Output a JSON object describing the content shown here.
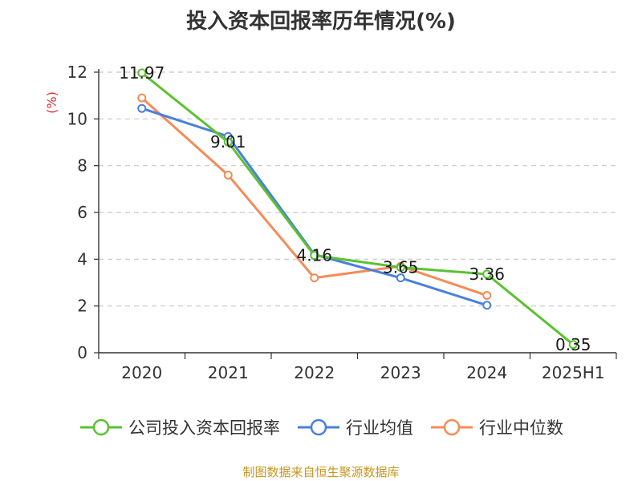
{
  "chart_data": {
    "type": "line",
    "title": "投入资本回报率历年情况(%)",
    "ylabel": "(%)",
    "categories": [
      "2020",
      "2021",
      "2022",
      "2023",
      "2024",
      "2025H1"
    ],
    "ylim": [
      0,
      12
    ],
    "yticks": [
      0,
      2,
      4,
      6,
      8,
      10,
      12
    ],
    "grid": true,
    "legend_position": "bottom",
    "series": [
      {
        "name": "公司投入资本回报率",
        "color": "#5cc131",
        "values": [
          11.97,
          9.01,
          4.16,
          3.65,
          3.36,
          0.35
        ],
        "show_labels": true
      },
      {
        "name": "行业均值",
        "color": "#4a7fdc",
        "values": [
          10.45,
          9.25,
          4.2,
          3.2,
          2.03,
          null
        ],
        "show_labels": false
      },
      {
        "name": "行业中位数",
        "color": "#f58b57",
        "values": [
          10.9,
          7.6,
          3.2,
          3.7,
          2.45,
          null
        ],
        "show_labels": false
      }
    ],
    "data_labels": [
      "11.97",
      "9.01",
      "4.16",
      "3.65",
      "3.36",
      "0.35"
    ]
  },
  "source": "制图数据来自恒生聚源数据库"
}
